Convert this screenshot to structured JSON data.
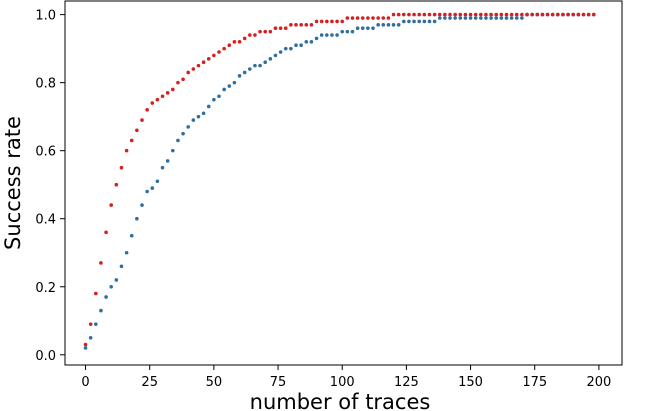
{
  "chart_data": {
    "type": "scatter",
    "title": "",
    "xlabel": "number of traces",
    "ylabel": "Success rate",
    "xlim": [
      -8,
      209
    ],
    "ylim": [
      -0.03,
      1.04
    ],
    "xticks": [
      0,
      25,
      50,
      75,
      100,
      125,
      150,
      175,
      200
    ],
    "yticks": [
      0.0,
      0.2,
      0.4,
      0.6,
      0.8,
      1.0
    ],
    "xtick_labels": [
      "0",
      "25",
      "50",
      "75",
      "100",
      "125",
      "150",
      "175",
      "200"
    ],
    "ytick_labels": [
      "0.0",
      "0.2",
      "0.4",
      "0.6",
      "0.8",
      "1.0"
    ],
    "grid": false,
    "legend": "none",
    "series": [
      {
        "color": "#2f6fa0",
        "x": [
          0,
          2,
          4,
          6,
          8,
          10,
          12,
          14,
          16,
          18,
          20,
          22,
          24,
          26,
          28,
          30,
          32,
          34,
          36,
          38,
          40,
          42,
          44,
          46,
          48,
          50,
          52,
          54,
          56,
          58,
          60,
          62,
          64,
          66,
          68,
          70,
          72,
          74,
          76,
          78,
          80,
          82,
          84,
          86,
          88,
          90,
          92,
          94,
          96,
          98,
          100,
          102,
          104,
          106,
          108,
          110,
          112,
          114,
          116,
          118,
          120,
          122,
          124,
          126,
          128,
          130,
          132,
          134,
          136,
          138,
          140,
          142,
          144,
          146,
          148,
          150,
          152,
          154,
          156,
          158,
          160,
          162,
          164,
          166,
          168,
          170,
          172,
          174,
          176,
          178,
          180,
          182,
          184,
          186,
          188,
          190,
          192,
          194,
          196,
          198
        ],
        "y": [
          0.02,
          0.05,
          0.09,
          0.13,
          0.17,
          0.2,
          0.22,
          0.26,
          0.3,
          0.35,
          0.4,
          0.44,
          0.48,
          0.49,
          0.51,
          0.55,
          0.57,
          0.6,
          0.63,
          0.65,
          0.67,
          0.69,
          0.7,
          0.71,
          0.73,
          0.75,
          0.76,
          0.78,
          0.79,
          0.8,
          0.82,
          0.83,
          0.84,
          0.85,
          0.85,
          0.86,
          0.87,
          0.88,
          0.89,
          0.9,
          0.9,
          0.91,
          0.91,
          0.92,
          0.92,
          0.93,
          0.94,
          0.94,
          0.94,
          0.94,
          0.95,
          0.95,
          0.95,
          0.96,
          0.96,
          0.96,
          0.96,
          0.97,
          0.97,
          0.97,
          0.97,
          0.97,
          0.98,
          0.98,
          0.98,
          0.98,
          0.98,
          0.98,
          0.98,
          0.99,
          0.99,
          0.99,
          0.99,
          0.99,
          0.99,
          0.99,
          0.99,
          0.99,
          0.99,
          0.99,
          0.99,
          0.99,
          0.99,
          0.99,
          0.99,
          0.99,
          1.0,
          1.0,
          1.0,
          1.0,
          1.0,
          1.0,
          1.0,
          1.0,
          1.0,
          1.0,
          1.0,
          1.0,
          1.0,
          1.0
        ]
      },
      {
        "color": "#d42020",
        "x": [
          0,
          2,
          4,
          6,
          8,
          10,
          12,
          14,
          16,
          18,
          20,
          22,
          24,
          26,
          28,
          30,
          32,
          34,
          36,
          38,
          40,
          42,
          44,
          46,
          48,
          50,
          52,
          54,
          56,
          58,
          60,
          62,
          64,
          66,
          68,
          70,
          72,
          74,
          76,
          78,
          80,
          82,
          84,
          86,
          88,
          90,
          92,
          94,
          96,
          98,
          100,
          102,
          104,
          106,
          108,
          110,
          112,
          114,
          116,
          118,
          120,
          122,
          124,
          126,
          128,
          130,
          132,
          134,
          136,
          138,
          140,
          142,
          144,
          146,
          148,
          150,
          152,
          154,
          156,
          158,
          160,
          162,
          164,
          166,
          168,
          170,
          172,
          174,
          176,
          178,
          180,
          182,
          184,
          186,
          188,
          190,
          192,
          194,
          196,
          198
        ],
        "y": [
          0.03,
          0.09,
          0.18,
          0.27,
          0.36,
          0.44,
          0.5,
          0.55,
          0.6,
          0.63,
          0.66,
          0.69,
          0.72,
          0.74,
          0.75,
          0.76,
          0.77,
          0.78,
          0.8,
          0.81,
          0.83,
          0.84,
          0.85,
          0.86,
          0.87,
          0.88,
          0.89,
          0.9,
          0.91,
          0.92,
          0.92,
          0.93,
          0.94,
          0.94,
          0.95,
          0.95,
          0.95,
          0.96,
          0.96,
          0.96,
          0.97,
          0.97,
          0.97,
          0.97,
          0.97,
          0.98,
          0.98,
          0.98,
          0.98,
          0.98,
          0.98,
          0.99,
          0.99,
          0.99,
          0.99,
          0.99,
          0.99,
          0.99,
          0.99,
          0.99,
          1.0,
          1.0,
          1.0,
          1.0,
          1.0,
          1.0,
          1.0,
          1.0,
          1.0,
          1.0,
          1.0,
          1.0,
          1.0,
          1.0,
          1.0,
          1.0,
          1.0,
          1.0,
          1.0,
          1.0,
          1.0,
          1.0,
          1.0,
          1.0,
          1.0,
          1.0,
          1.0,
          1.0,
          1.0,
          1.0,
          1.0,
          1.0,
          1.0,
          1.0,
          1.0,
          1.0,
          1.0,
          1.0,
          1.0,
          1.0
        ]
      }
    ]
  }
}
